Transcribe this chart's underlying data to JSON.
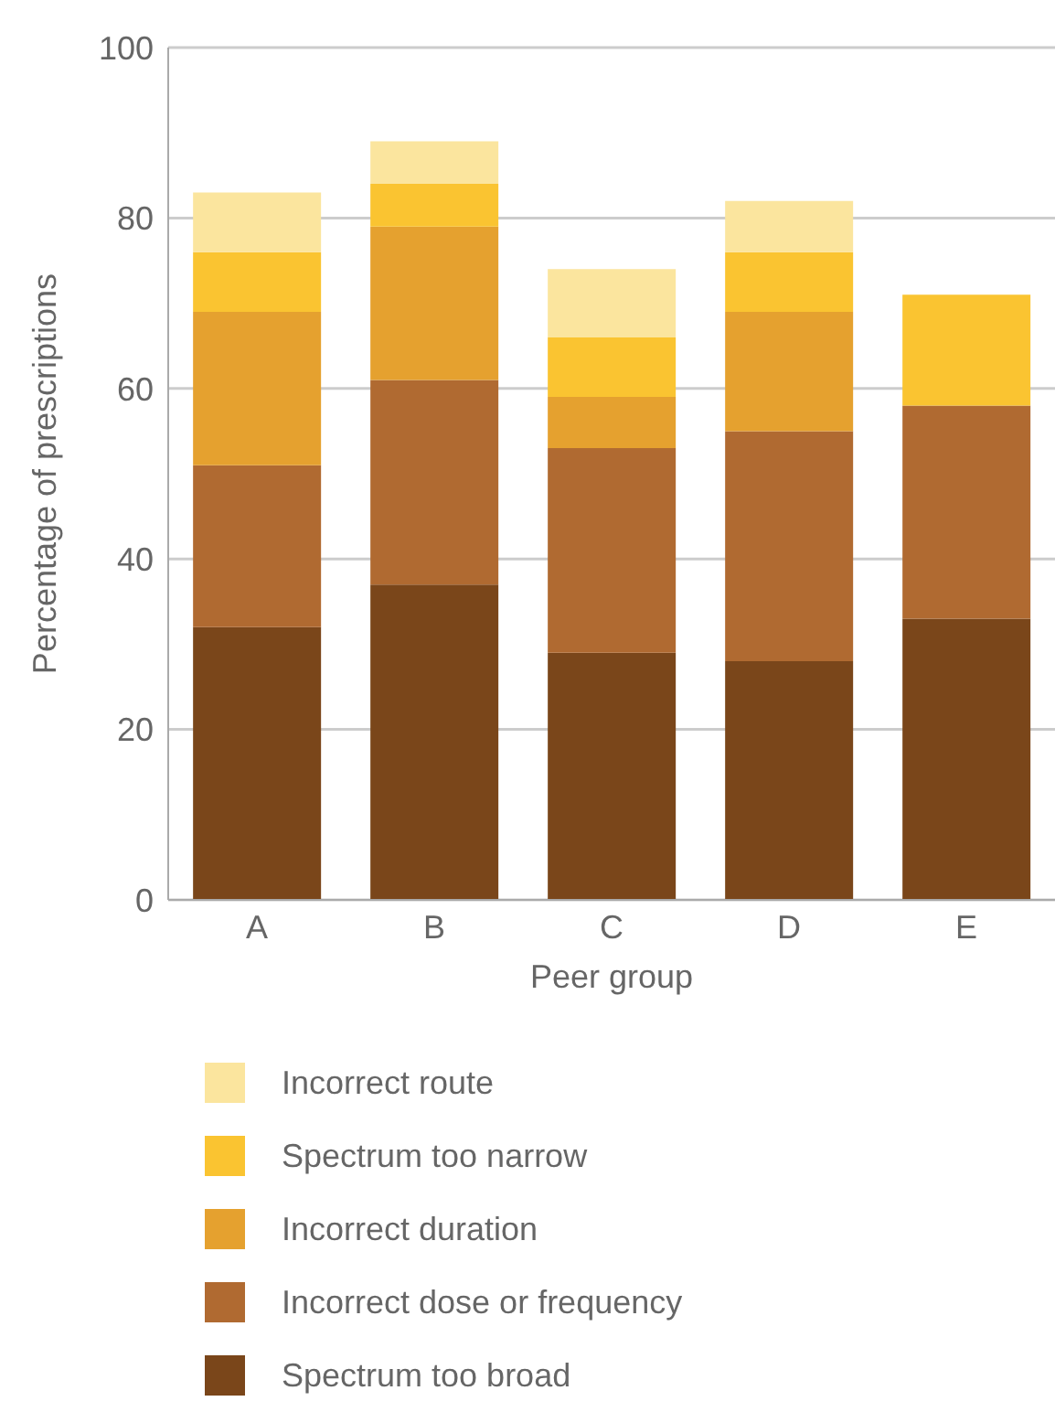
{
  "chart_data": {
    "type": "bar",
    "stacked": true,
    "xlabel": "Peer group",
    "ylabel": "Percentage of prescriptions",
    "categories": [
      "A",
      "B",
      "C",
      "D",
      "E"
    ],
    "series": [
      {
        "name": "Spectrum too broad",
        "color": "#7a461a",
        "values": [
          32,
          37,
          29,
          28,
          33
        ]
      },
      {
        "name": "Incorrect dose or frequency",
        "color": "#b06a31",
        "values": [
          19,
          24,
          24,
          27,
          25
        ]
      },
      {
        "name": "Incorrect duration",
        "color": "#e5a12f",
        "values": [
          18,
          18,
          6,
          14,
          0
        ]
      },
      {
        "name": "Spectrum too narrow",
        "color": "#fac431",
        "values": [
          7,
          5,
          7,
          7,
          13
        ]
      },
      {
        "name": "Incorrect route",
        "color": "#fbe59e",
        "values": [
          7,
          5,
          8,
          6,
          0
        ]
      }
    ],
    "ylim": [
      0,
      100
    ],
    "yticks": [
      0,
      20,
      40,
      60,
      80,
      100
    ],
    "grid": "y",
    "legend": "bottom"
  }
}
